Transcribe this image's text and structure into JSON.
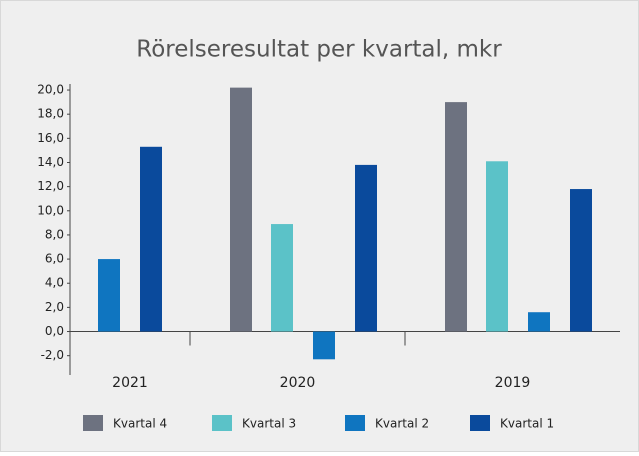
{
  "chart_data": {
    "type": "bar",
    "title": "Rörelseresultat per kvartal, mkr",
    "categories": [
      "2021",
      "2020",
      "2019"
    ],
    "series": [
      {
        "name": "Kvartal 4",
        "color": "#6d7280",
        "values": [
          null,
          20.2,
          19.0
        ]
      },
      {
        "name": "Kvartal 3",
        "color": "#5bc2c8",
        "values": [
          null,
          8.9,
          14.1
        ]
      },
      {
        "name": "Kvartal 2",
        "color": "#0f75c0",
        "values": [
          6.0,
          -2.3,
          1.6
        ]
      },
      {
        "name": "Kvartal 1",
        "color": "#0a4a9c",
        "values": [
          15.3,
          13.8,
          11.8
        ]
      }
    ],
    "ylim": [
      -3.6,
      20.5
    ],
    "yticks": [
      {
        "value": -2,
        "label": "-2,0"
      },
      {
        "value": 0,
        "label": "0,0"
      },
      {
        "value": 2,
        "label": "2,0"
      },
      {
        "value": 4,
        "label": "4,0"
      },
      {
        "value": 6,
        "label": "6,0"
      },
      {
        "value": 8,
        "label": "8,0"
      },
      {
        "value": 10,
        "label": "10,0"
      },
      {
        "value": 12,
        "label": "12,0"
      },
      {
        "value": 14,
        "label": "14,0"
      },
      {
        "value": 16,
        "label": "16,0"
      },
      {
        "value": 18,
        "label": "18,0"
      },
      {
        "value": 20,
        "label": "20,0"
      }
    ],
    "legend": "bottom"
  }
}
